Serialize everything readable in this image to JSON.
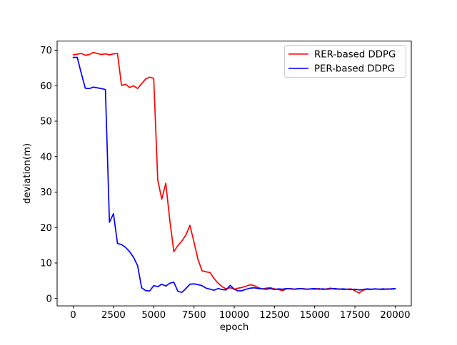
{
  "figure": {
    "background_color": "#ffffff"
  },
  "chart_data": {
    "type": "line",
    "title": "",
    "xlabel": "epoch",
    "ylabel": "deviation(m)",
    "xlim": [
      -1000,
      21000
    ],
    "ylim": [
      -2.1,
      72.6
    ],
    "xticks": [
      0,
      2500,
      5000,
      7500,
      10000,
      12500,
      15000,
      17500,
      20000
    ],
    "yticks": [
      0,
      10,
      20,
      30,
      40,
      50,
      60,
      70
    ],
    "grid": false,
    "legend": {
      "position": "upper-right",
      "border_color": "#cccccc",
      "background_color": "#ffffff"
    },
    "x": [
      0,
      250,
      500,
      750,
      1000,
      1250,
      1500,
      1750,
      2000,
      2250,
      2500,
      2750,
      3000,
      3250,
      3500,
      3750,
      4000,
      4250,
      4500,
      4750,
      5000,
      5250,
      5500,
      5750,
      6000,
      6250,
      6500,
      6750,
      7000,
      7250,
      7500,
      7750,
      8000,
      8250,
      8500,
      8750,
      9000,
      9250,
      9500,
      9750,
      10000,
      10250,
      10500,
      10750,
      11000,
      11250,
      11500,
      11750,
      12000,
      12250,
      12500,
      12750,
      13000,
      13250,
      13500,
      13750,
      14000,
      14250,
      14500,
      14750,
      15000,
      15250,
      15500,
      15750,
      16000,
      16250,
      16500,
      16750,
      17000,
      17250,
      17500,
      17750,
      18000,
      18250,
      18500,
      18750,
      19000,
      19250,
      19500,
      19750,
      20000
    ],
    "series": [
      {
        "name": "RER-based DDPG",
        "color": "#ff0000",
        "values": [
          68.7,
          68.9,
          69.1,
          68.6,
          68.8,
          69.4,
          69.1,
          68.8,
          69.0,
          68.7,
          69.0,
          69.1,
          60.1,
          60.4,
          59.5,
          60.0,
          59.2,
          60.6,
          61.9,
          62.4,
          62.1,
          33.4,
          28.0,
          32.5,
          22.0,
          13.2,
          14.9,
          16.2,
          17.9,
          20.6,
          15.9,
          11.0,
          7.8,
          7.5,
          7.3,
          5.6,
          4.3,
          3.3,
          2.7,
          3.0,
          2.6,
          2.9,
          3.1,
          3.5,
          3.85,
          3.6,
          3.0,
          2.7,
          2.9,
          3.0,
          2.7,
          2.5,
          2.2,
          2.7,
          2.8,
          2.6,
          2.7,
          2.8,
          2.6,
          2.7,
          2.6,
          2.8,
          2.5,
          2.7,
          2.9,
          2.6,
          2.7,
          2.5,
          2.6,
          2.7,
          2.2,
          1.5,
          2.3,
          2.6,
          2.5,
          2.7,
          2.6,
          2.5,
          2.7,
          2.6,
          2.7
        ]
      },
      {
        "name": "PER-based DDPG",
        "color": "#0000ff",
        "values": [
          68.0,
          68.0,
          63.5,
          59.3,
          59.2,
          59.6,
          59.4,
          59.2,
          58.9,
          21.5,
          23.9,
          15.5,
          15.2,
          14.4,
          13.2,
          11.6,
          9.2,
          3.0,
          2.2,
          2.1,
          3.6,
          3.3,
          4.0,
          3.5,
          4.3,
          4.6,
          2.0,
          1.7,
          2.8,
          4.0,
          4.1,
          3.9,
          3.6,
          2.9,
          2.6,
          2.3,
          2.8,
          2.5,
          2.4,
          3.7,
          2.6,
          2.1,
          2.2,
          2.6,
          2.9,
          3.0,
          2.8,
          2.7,
          2.6,
          2.8,
          2.5,
          2.7,
          2.6,
          2.8,
          2.7,
          2.6,
          2.8,
          2.7,
          2.6,
          2.7,
          2.8,
          2.6,
          2.7,
          2.6,
          2.7,
          2.8,
          2.6,
          2.7,
          2.6,
          2.5,
          2.6,
          2.4,
          2.5,
          2.7,
          2.6,
          2.7,
          2.6,
          2.7,
          2.6,
          2.7,
          2.8
        ]
      }
    ]
  }
}
